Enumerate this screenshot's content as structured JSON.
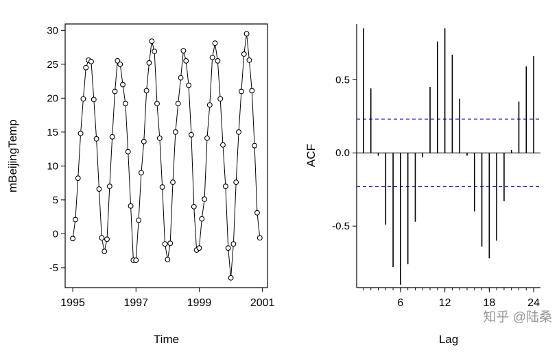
{
  "watermark": {
    "text": "知乎 @陆桑",
    "color": "#999999"
  },
  "chart_data": [
    {
      "type": "line",
      "title": "",
      "xlabel": "Time",
      "ylabel": "mBeijingTemp",
      "marker": "open-circle",
      "line_color": "#000000",
      "x_start": 1995,
      "frequency": 12,
      "xlim": [
        1994.76,
        2001.16
      ],
      "ylim": [
        -7.94,
        30.94
      ],
      "xticks": [
        1995,
        1997,
        1999,
        2001
      ],
      "yticks": [
        -5,
        0,
        5,
        10,
        15,
        20,
        25,
        30
      ],
      "values": [
        -0.7,
        2.1,
        8.2,
        14.8,
        19.9,
        24.5,
        25.6,
        25.4,
        19.8,
        14.0,
        6.6,
        -0.6,
        -2.6,
        -0.8,
        7.0,
        14.3,
        21.0,
        25.5,
        25.0,
        22.0,
        19.2,
        12.1,
        4.1,
        -3.9,
        -3.9,
        2.0,
        9.0,
        13.6,
        21.1,
        25.2,
        28.4,
        26.9,
        19.2,
        14.1,
        6.9,
        -1.5,
        -3.8,
        -1.4,
        7.6,
        15.0,
        19.2,
        23.0,
        27.0,
        25.5,
        21.9,
        14.6,
        4.0,
        -2.4,
        -2.1,
        2.2,
        5.1,
        14.1,
        19.0,
        26.0,
        28.1,
        25.5,
        19.9,
        13.1,
        7.0,
        -2.1,
        -6.5,
        -1.5,
        7.6,
        15.0,
        21.0,
        26.5,
        29.5,
        25.6,
        21.1,
        13.0,
        3.1,
        -0.6
      ]
    },
    {
      "type": "bar",
      "subtype": "acf-stem",
      "title": "",
      "xlabel": "Lag",
      "ylabel": "ACF",
      "bar_color": "#000000",
      "conf_level": 0.23,
      "conf_color": "#2222cc",
      "conf_style": "dashed",
      "xlim": [
        0.08,
        24.92
      ],
      "ylim": [
        -0.92,
        0.88
      ],
      "xticks": [
        6,
        12,
        18,
        24
      ],
      "yticks": [
        -0.5,
        0,
        0.5
      ],
      "lags": [
        1,
        2,
        3,
        4,
        5,
        6,
        7,
        8,
        9,
        10,
        11,
        12,
        13,
        14,
        15,
        16,
        17,
        18,
        19,
        20,
        21,
        22,
        23,
        24
      ],
      "values": [
        0.85,
        0.44,
        -0.02,
        -0.49,
        -0.78,
        -0.9,
        -0.76,
        -0.47,
        -0.03,
        0.45,
        0.76,
        0.85,
        0.67,
        0.37,
        -0.02,
        -0.4,
        -0.64,
        -0.72,
        -0.6,
        -0.33,
        0.02,
        0.35,
        0.59,
        0.66
      ]
    }
  ]
}
